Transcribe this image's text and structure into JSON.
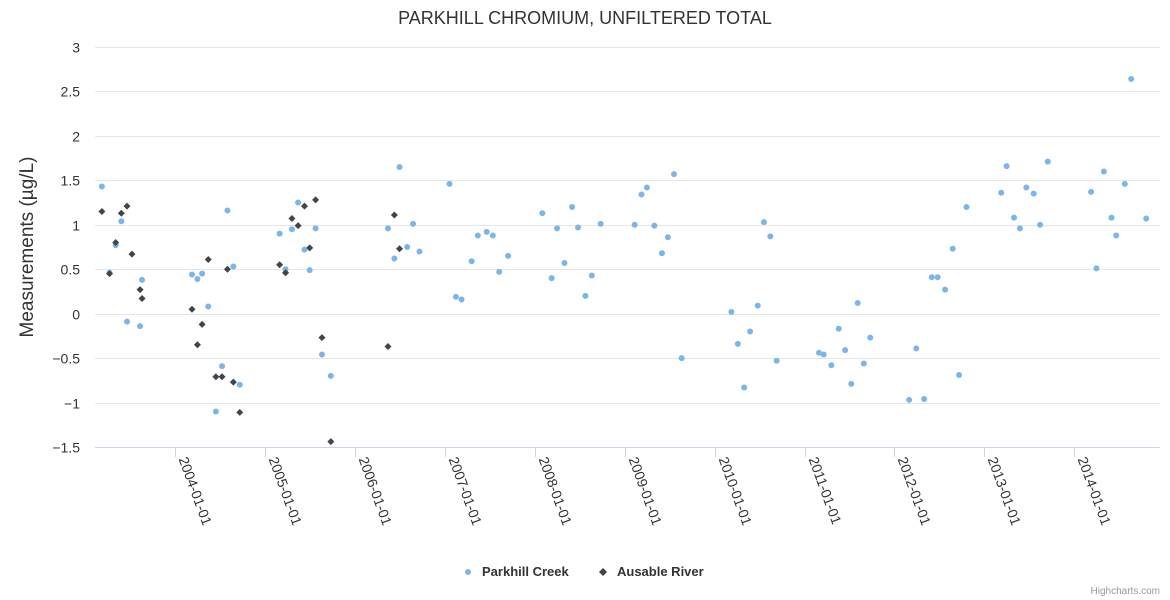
{
  "chart_data": {
    "type": "scatter",
    "title": "PARKHILL CHROMIUM, UNFILTERED TOTAL",
    "ylabel": "Measurements (µg/L)",
    "xlabel": "",
    "ylim": [
      -1.5,
      3
    ],
    "y_ticks": [
      "−1.5",
      "−1",
      "−0.5",
      "0",
      "0.5",
      "1",
      "1.5",
      "2",
      "2.5",
      "3"
    ],
    "y_tick_values": [
      -1.5,
      -1,
      -0.5,
      0,
      0.5,
      1,
      1.5,
      2,
      2.5,
      3
    ],
    "xlim": [
      "2003-02-10",
      "2014-12-15"
    ],
    "x_ticks": [
      "2004-01-01",
      "2005-01-01",
      "2006-01-01",
      "2007-01-01",
      "2008-01-01",
      "2009-01-01",
      "2010-01-01",
      "2011-01-01",
      "2012-01-01",
      "2013-01-01",
      "2014-01-01"
    ],
    "grid": "horizontal",
    "legend_placement": "bottom-center",
    "credits": "Highcharts.com",
    "series": [
      {
        "name": "Parkhill Creek",
        "color": "#7cb5ec",
        "marker": "circle",
        "points": [
          [
            "2003-03-10",
            1.43
          ],
          [
            "2003-04-10",
            0.46
          ],
          [
            "2003-05-05",
            0.77
          ],
          [
            "2003-05-28",
            1.04
          ],
          [
            "2003-06-20",
            -0.09
          ],
          [
            "2003-08-12",
            -0.14
          ],
          [
            "2003-08-20",
            0.38
          ],
          [
            "2004-03-10",
            0.44
          ],
          [
            "2004-04-01",
            0.39
          ],
          [
            "2004-04-20",
            0.45
          ],
          [
            "2004-05-15",
            0.08
          ],
          [
            "2004-06-15",
            -1.1
          ],
          [
            "2004-07-10",
            -0.59
          ],
          [
            "2004-08-01",
            1.16
          ],
          [
            "2004-08-25",
            0.53
          ],
          [
            "2004-09-20",
            -0.8
          ],
          [
            "2005-03-01",
            0.9
          ],
          [
            "2005-03-25",
            0.5
          ],
          [
            "2005-04-20",
            0.95
          ],
          [
            "2005-05-15",
            1.25
          ],
          [
            "2005-06-10",
            0.72
          ],
          [
            "2005-07-01",
            0.49
          ],
          [
            "2005-07-25",
            0.96
          ],
          [
            "2005-08-20",
            -0.46
          ],
          [
            "2005-09-25",
            -0.7
          ],
          [
            "2006-05-15",
            0.96
          ],
          [
            "2006-06-10",
            0.62
          ],
          [
            "2006-07-01",
            1.65
          ],
          [
            "2006-08-01",
            0.75
          ],
          [
            "2006-08-25",
            1.01
          ],
          [
            "2006-09-20",
            0.7
          ],
          [
            "2007-01-20",
            1.46
          ],
          [
            "2007-02-15",
            0.19
          ],
          [
            "2007-03-10",
            0.16
          ],
          [
            "2007-04-20",
            0.59
          ],
          [
            "2007-05-15",
            0.88
          ],
          [
            "2007-06-20",
            0.92
          ],
          [
            "2007-07-15",
            0.88
          ],
          [
            "2007-08-10",
            0.47
          ],
          [
            "2007-09-15",
            0.65
          ],
          [
            "2008-02-01",
            1.13
          ],
          [
            "2008-03-10",
            0.4
          ],
          [
            "2008-04-01",
            0.96
          ],
          [
            "2008-05-01",
            0.57
          ],
          [
            "2008-06-01",
            1.2
          ],
          [
            "2008-06-25",
            0.97
          ],
          [
            "2008-07-25",
            0.2
          ],
          [
            "2008-08-20",
            0.43
          ],
          [
            "2008-09-25",
            1.01
          ],
          [
            "2009-02-10",
            1.0
          ],
          [
            "2009-03-10",
            1.34
          ],
          [
            "2009-04-01",
            1.42
          ],
          [
            "2009-05-01",
            0.99
          ],
          [
            "2009-06-01",
            0.68
          ],
          [
            "2009-06-25",
            0.86
          ],
          [
            "2009-07-20",
            1.57
          ],
          [
            "2009-08-20",
            -0.5
          ],
          [
            "2010-03-10",
            0.02
          ],
          [
            "2010-04-05",
            -0.34
          ],
          [
            "2010-05-01",
            -0.83
          ],
          [
            "2010-05-25",
            -0.2
          ],
          [
            "2010-06-25",
            0.09
          ],
          [
            "2010-07-20",
            1.03
          ],
          [
            "2010-08-15",
            0.87
          ],
          [
            "2010-09-10",
            -0.53
          ],
          [
            "2011-03-01",
            -0.44
          ],
          [
            "2011-03-20",
            -0.46
          ],
          [
            "2011-04-20",
            -0.58
          ],
          [
            "2011-05-20",
            -0.17
          ],
          [
            "2011-06-15",
            -0.41
          ],
          [
            "2011-07-10",
            -0.79
          ],
          [
            "2011-08-05",
            0.12
          ],
          [
            "2011-08-30",
            -0.56
          ],
          [
            "2011-09-25",
            -0.27
          ],
          [
            "2012-03-01",
            -0.97
          ],
          [
            "2012-03-30",
            -0.39
          ],
          [
            "2012-05-01",
            -0.96
          ],
          [
            "2012-06-01",
            0.41
          ],
          [
            "2012-06-25",
            0.41
          ],
          [
            "2012-07-25",
            0.27
          ],
          [
            "2012-08-25",
            0.73
          ],
          [
            "2012-09-20",
            -0.69
          ],
          [
            "2012-10-20",
            1.2
          ],
          [
            "2013-03-10",
            1.36
          ],
          [
            "2013-04-01",
            1.66
          ],
          [
            "2013-05-01",
            1.08
          ],
          [
            "2013-05-25",
            0.96
          ],
          [
            "2013-06-20",
            1.42
          ],
          [
            "2013-07-20",
            1.35
          ],
          [
            "2013-08-15",
            1.0
          ],
          [
            "2013-09-15",
            1.71
          ],
          [
            "2014-03-10",
            1.37
          ],
          [
            "2014-04-01",
            0.51
          ],
          [
            "2014-05-01",
            1.6
          ],
          [
            "2014-06-01",
            1.08
          ],
          [
            "2014-06-20",
            0.88
          ],
          [
            "2014-07-25",
            1.46
          ],
          [
            "2014-08-20",
            2.64
          ],
          [
            "2014-10-20",
            1.07
          ]
        ]
      },
      {
        "name": "Ausable River",
        "color": "#434348",
        "marker": "diamond",
        "points": [
          [
            "2003-03-10",
            1.15
          ],
          [
            "2003-04-10",
            0.45
          ],
          [
            "2003-05-05",
            0.8
          ],
          [
            "2003-05-28",
            1.13
          ],
          [
            "2003-06-20",
            1.21
          ],
          [
            "2003-07-10",
            0.67
          ],
          [
            "2003-08-12",
            0.27
          ],
          [
            "2003-08-20",
            0.17
          ],
          [
            "2004-03-10",
            0.05
          ],
          [
            "2004-04-01",
            -0.35
          ],
          [
            "2004-04-20",
            -0.12
          ],
          [
            "2004-05-15",
            0.61
          ],
          [
            "2004-06-15",
            -0.71
          ],
          [
            "2004-07-10",
            -0.71
          ],
          [
            "2004-08-01",
            0.5
          ],
          [
            "2004-08-25",
            -0.77
          ],
          [
            "2004-09-20",
            -1.11
          ],
          [
            "2005-03-01",
            0.55
          ],
          [
            "2005-03-25",
            0.46
          ],
          [
            "2005-04-20",
            1.07
          ],
          [
            "2005-05-15",
            0.99
          ],
          [
            "2005-06-10",
            1.21
          ],
          [
            "2005-07-01",
            0.74
          ],
          [
            "2005-07-25",
            1.28
          ],
          [
            "2005-08-20",
            -0.27
          ],
          [
            "2005-09-25",
            -1.44
          ],
          [
            "2006-05-15",
            -0.37
          ],
          [
            "2006-06-10",
            1.11
          ],
          [
            "2006-07-01",
            0.73
          ]
        ]
      }
    ]
  }
}
